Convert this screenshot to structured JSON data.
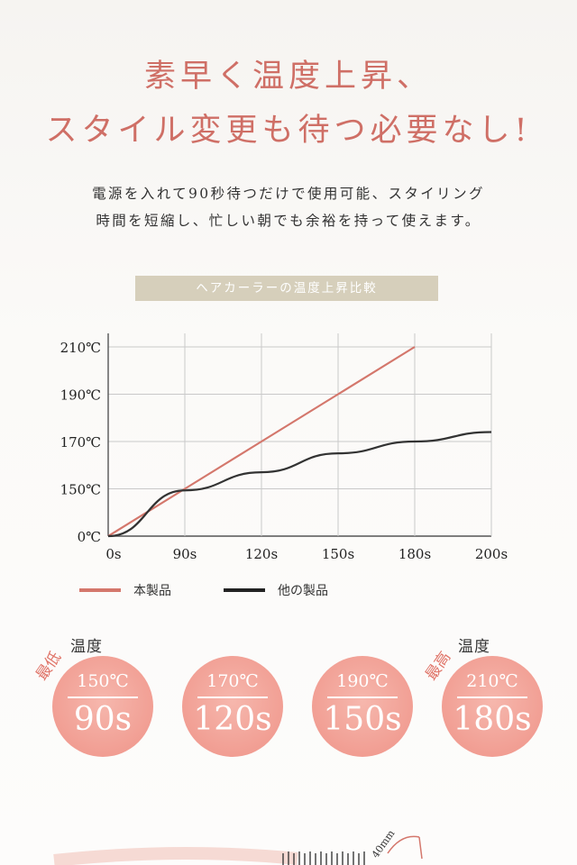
{
  "heading": {
    "line1": "素早く温度上昇、",
    "line2": "スタイル変更も待つ必要なし!"
  },
  "lead": {
    "line1": "電源を入れて90秒待つだけで使用可能、スタイリング",
    "line2": "時間を短縮し、忙しい朝でも余裕を持って使えます。"
  },
  "banner": "ヘアカーラーの温度上昇比較",
  "chart_data": {
    "type": "line",
    "title": "ヘアカーラーの温度上昇比較",
    "x_categories": [
      "0s",
      "90s",
      "120s",
      "150s",
      "180s",
      "200s"
    ],
    "y_ticks": [
      "0℃",
      "150℃",
      "170℃",
      "190℃",
      "210℃"
    ],
    "y_tick_values": [
      0,
      150,
      170,
      190,
      210
    ],
    "grid": true,
    "legend_position": "bottom-left",
    "series": [
      {
        "name": "本製品",
        "color": "#d4776c",
        "points": [
          {
            "x": "0s",
            "y": 0
          },
          {
            "x": "90s",
            "y": 150
          },
          {
            "x": "120s",
            "y": 170
          },
          {
            "x": "150s",
            "y": 190
          },
          {
            "x": "180s",
            "y": 210
          }
        ]
      },
      {
        "name": "他の製品",
        "color": "#333333",
        "points": [
          {
            "x": "0s",
            "y": 0
          },
          {
            "x": "90s",
            "y": 145
          },
          {
            "x": "120s",
            "y": 157
          },
          {
            "x": "150s",
            "y": 165
          },
          {
            "x": "180s",
            "y": 170
          },
          {
            "x": "200s",
            "y": 174
          }
        ]
      }
    ]
  },
  "badges": {
    "label_left": "温度",
    "accent_left": "最低",
    "label_right": "温度",
    "accent_right": "最高",
    "items": [
      {
        "temp": "150℃",
        "time": "90s"
      },
      {
        "temp": "170℃",
        "time": "120s"
      },
      {
        "temp": "190℃",
        "time": "150s"
      },
      {
        "temp": "210℃",
        "time": "180s"
      }
    ]
  },
  "bottom": {
    "dimension": "40mm"
  }
}
